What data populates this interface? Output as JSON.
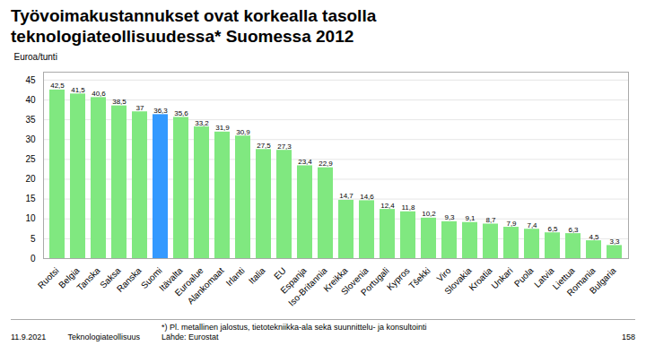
{
  "chart_data": {
    "type": "bar",
    "title": "Työvoimakustannukset ovat korkealla tasolla\nteknologiateollisuudessa* Suomessa 2012",
    "ylabel": "Euroa/tunti",
    "categories": [
      "Ruotsi",
      "Belgia",
      "Tanska",
      "Saksa",
      "Ranska",
      "Suomi",
      "Itävalta",
      "Euroalue",
      "Alankomaat",
      "Irlanti",
      "Italia",
      "EU",
      "Espanja",
      "Iso-Britannia",
      "Kreikka",
      "Slovenia",
      "Portugali",
      "Kypros",
      "Tšekki",
      "Viro",
      "Slovakia",
      "Kroatia",
      "Unkari",
      "Puola",
      "Latvia",
      "Liettua",
      "Romania",
      "Bulgaria"
    ],
    "values": [
      42.5,
      41.5,
      40.6,
      38.5,
      37.0,
      36.3,
      35.6,
      33.2,
      31.9,
      30.9,
      27.5,
      27.3,
      23.4,
      22.9,
      14.7,
      14.6,
      12.4,
      11.8,
      10.2,
      9.3,
      9.1,
      8.7,
      7.9,
      7.4,
      6.5,
      6.3,
      4.5,
      3.3
    ],
    "value_labels": [
      "42,5",
      "41,5",
      "40,6",
      "38,5",
      "37",
      "36,3",
      "35,6",
      "33,2",
      "31,9",
      "30,9",
      "27,5",
      "27,3",
      "23,4",
      "22,9",
      "14,7",
      "14,6",
      "12,4",
      "11,8",
      "10,2",
      "9,3",
      "9,1",
      "8,7",
      "7,9",
      "7,4",
      "6,5",
      "6,3",
      "4,5",
      "3,3"
    ],
    "colors": [
      "#80e880",
      "#80e880",
      "#80e880",
      "#80e880",
      "#80e880",
      "#3399ff",
      "#80e880",
      "#80e880",
      "#80e880",
      "#80e880",
      "#80e880",
      "#80e880",
      "#80e880",
      "#80e880",
      "#80e880",
      "#80e880",
      "#80e880",
      "#80e880",
      "#80e880",
      "#80e880",
      "#80e880",
      "#80e880",
      "#80e880",
      "#80e880",
      "#80e880",
      "#80e880",
      "#80e880",
      "#80e880"
    ],
    "ylim": [
      0,
      47
    ],
    "yticks": [
      0,
      5,
      10,
      15,
      20,
      25,
      30,
      35,
      40,
      45
    ],
    "grid": true,
    "data_labels": true,
    "annotations": [
      "11.9.2021",
      "Teknologiateollisuus",
      "*) Pl. metallinen jalostus, tietotekniikka-ala sekä suunnittelu- ja konsultointi\nLähde: Eurostat",
      "158"
    ]
  }
}
